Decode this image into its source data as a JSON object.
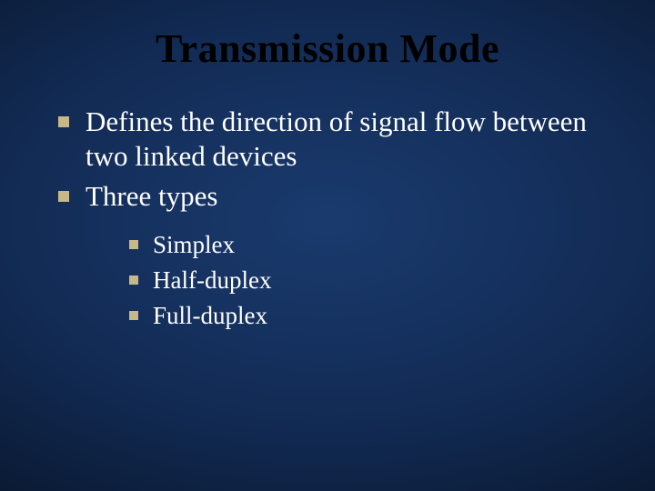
{
  "slide": {
    "title": "Transmission Mode",
    "title_color": "#000000",
    "title_fontsize": 44,
    "background_gradient": {
      "type": "radial",
      "stops": [
        "#1a3a6e",
        "#122b54",
        "#0a1830",
        "#050e1f"
      ]
    },
    "text_color": "#ffffff",
    "bullet_marker_color": "#c7b88a",
    "bullet_marker_shape": "square",
    "font_family": "Times New Roman",
    "bullets_l1": [
      "Defines the direction of signal flow between two linked devices",
      "Three types"
    ],
    "bullets_l1_fontsize": 31,
    "bullets_l2": [
      "Simplex",
      "Half-duplex",
      "Full-duplex"
    ],
    "bullets_l2_fontsize": 27
  }
}
